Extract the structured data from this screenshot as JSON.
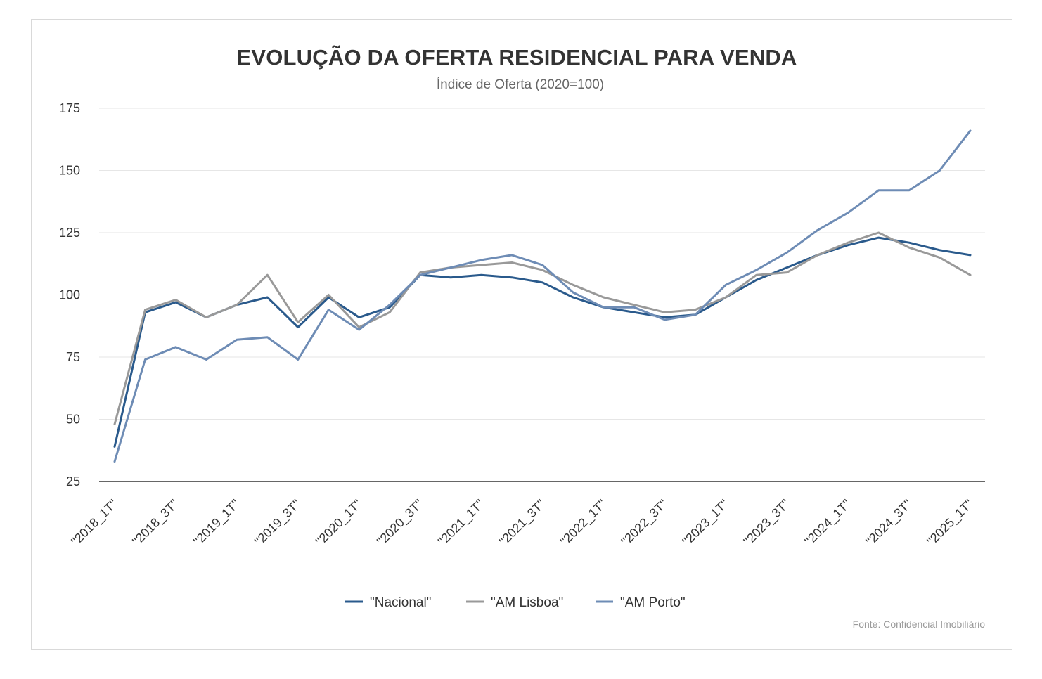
{
  "chart_data": {
    "type": "line",
    "title": "EVOLUÇÃO DA OFERTA RESIDENCIAL PARA VENDA",
    "subtitle": "Índice de Oferta (2020=100)",
    "source": "Fonte: Confidencial Imobiliário",
    "ylim": [
      25,
      175
    ],
    "yticks": [
      25,
      50,
      75,
      100,
      125,
      150,
      175
    ],
    "grid": true,
    "legend_position": "bottom",
    "categories": [
      "\"2018_1T\"",
      "\"2018_2T\"",
      "\"2018_3T\"",
      "\"2018_4T\"",
      "\"2019_1T\"",
      "\"2019_2T\"",
      "\"2019_3T\"",
      "\"2019_4T\"",
      "\"2020_1T\"",
      "\"2020_2T\"",
      "\"2020_3T\"",
      "\"2020_4T\"",
      "\"2021_1T\"",
      "\"2021_2T\"",
      "\"2021_3T\"",
      "\"2021_4T\"",
      "\"2022_1T\"",
      "\"2022_2T\"",
      "\"2022_3T\"",
      "\"2022_4T\"",
      "\"2023_1T\"",
      "\"2023_2T\"",
      "\"2023_3T\"",
      "\"2023_4T\"",
      "\"2024_1T\"",
      "\"2024_2T\"",
      "\"2024_3T\"",
      "\"2024_4T\"",
      "\"2025_1T\""
    ],
    "tick_labels": [
      "\"2018_1T\"",
      "\"2018_3T\"",
      "\"2019_1T\"",
      "\"2019_3T\"",
      "\"2020_1T\"",
      "\"2020_3T\"",
      "\"2021_1T\"",
      "\"2021_3T\"",
      "\"2022_1T\"",
      "\"2022_3T\"",
      "\"2023_1T\"",
      "\"2023_3T\"",
      "\"2024_1T\"",
      "\"2024_3T\"",
      "\"2025_1T\""
    ],
    "series": [
      {
        "name": "\"Nacional\"",
        "color": "#2a5a8c",
        "values": [
          39,
          93,
          97,
          91,
          96,
          99,
          87,
          99,
          91,
          95,
          108,
          107,
          108,
          107,
          105,
          99,
          95,
          93,
          91,
          92,
          99,
          106,
          111,
          116,
          120,
          123,
          121,
          118,
          116
        ]
      },
      {
        "name": "\"AM Lisboa\"",
        "color": "#999999",
        "values": [
          48,
          94,
          98,
          91,
          96,
          108,
          89,
          100,
          87,
          93,
          109,
          111,
          112,
          113,
          110,
          104,
          99,
          96,
          93,
          94,
          99,
          108,
          109,
          116,
          121,
          125,
          119,
          115,
          108
        ]
      },
      {
        "name": "\"AM Porto\"",
        "color": "#6e8cb5",
        "values": [
          33,
          74,
          79,
          74,
          82,
          83,
          74,
          94,
          86,
          96,
          108,
          111,
          114,
          116,
          112,
          101,
          95,
          95,
          90,
          92,
          104,
          110,
          117,
          126,
          133,
          142,
          142,
          150,
          166
        ]
      }
    ]
  }
}
